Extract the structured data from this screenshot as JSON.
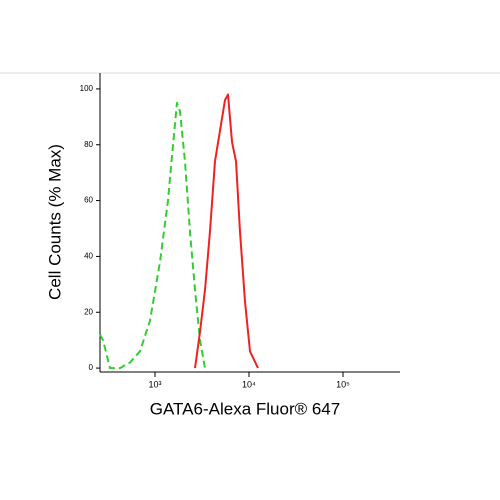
{
  "chart_data": {
    "type": "line",
    "xlabel": "GATA6-Alexa Fluor® 647",
    "ylabel": "Cell Counts (% Max)",
    "xscale": "log",
    "xlim": [
      260,
      404000
    ],
    "xticks": [
      {
        "value": 1000,
        "label": "10³"
      },
      {
        "value": 10000,
        "label": "10⁴"
      },
      {
        "value": 100000,
        "label": "10⁵"
      }
    ],
    "ylim": [
      -1.4,
      105.7
    ],
    "yticks": [
      0,
      20,
      40,
      60,
      80,
      100
    ],
    "series": [
      {
        "color": "#33cc33",
        "dashed": true,
        "x": [
          260,
          280,
          332,
          425,
          542,
          692,
          885,
          1130,
          1375,
          1517,
          1714,
          1845,
          2085,
          2355,
          2665,
          3013,
          3404
        ],
        "values": [
          12,
          10,
          0,
          0,
          2,
          6,
          17,
          38,
          60,
          76,
          95,
          92,
          74,
          49,
          28,
          10,
          0
        ]
      },
      {
        "color": "#ee2222",
        "dashed": false,
        "x": [
          2665,
          3013,
          3404,
          3846,
          4346,
          4911,
          5555,
          5980,
          6595,
          7278,
          8017,
          9058,
          10250,
          12470
        ],
        "values": [
          0,
          13,
          28,
          49,
          74,
          85,
          96,
          98,
          81,
          74,
          49,
          24,
          6,
          0
        ]
      }
    ]
  }
}
